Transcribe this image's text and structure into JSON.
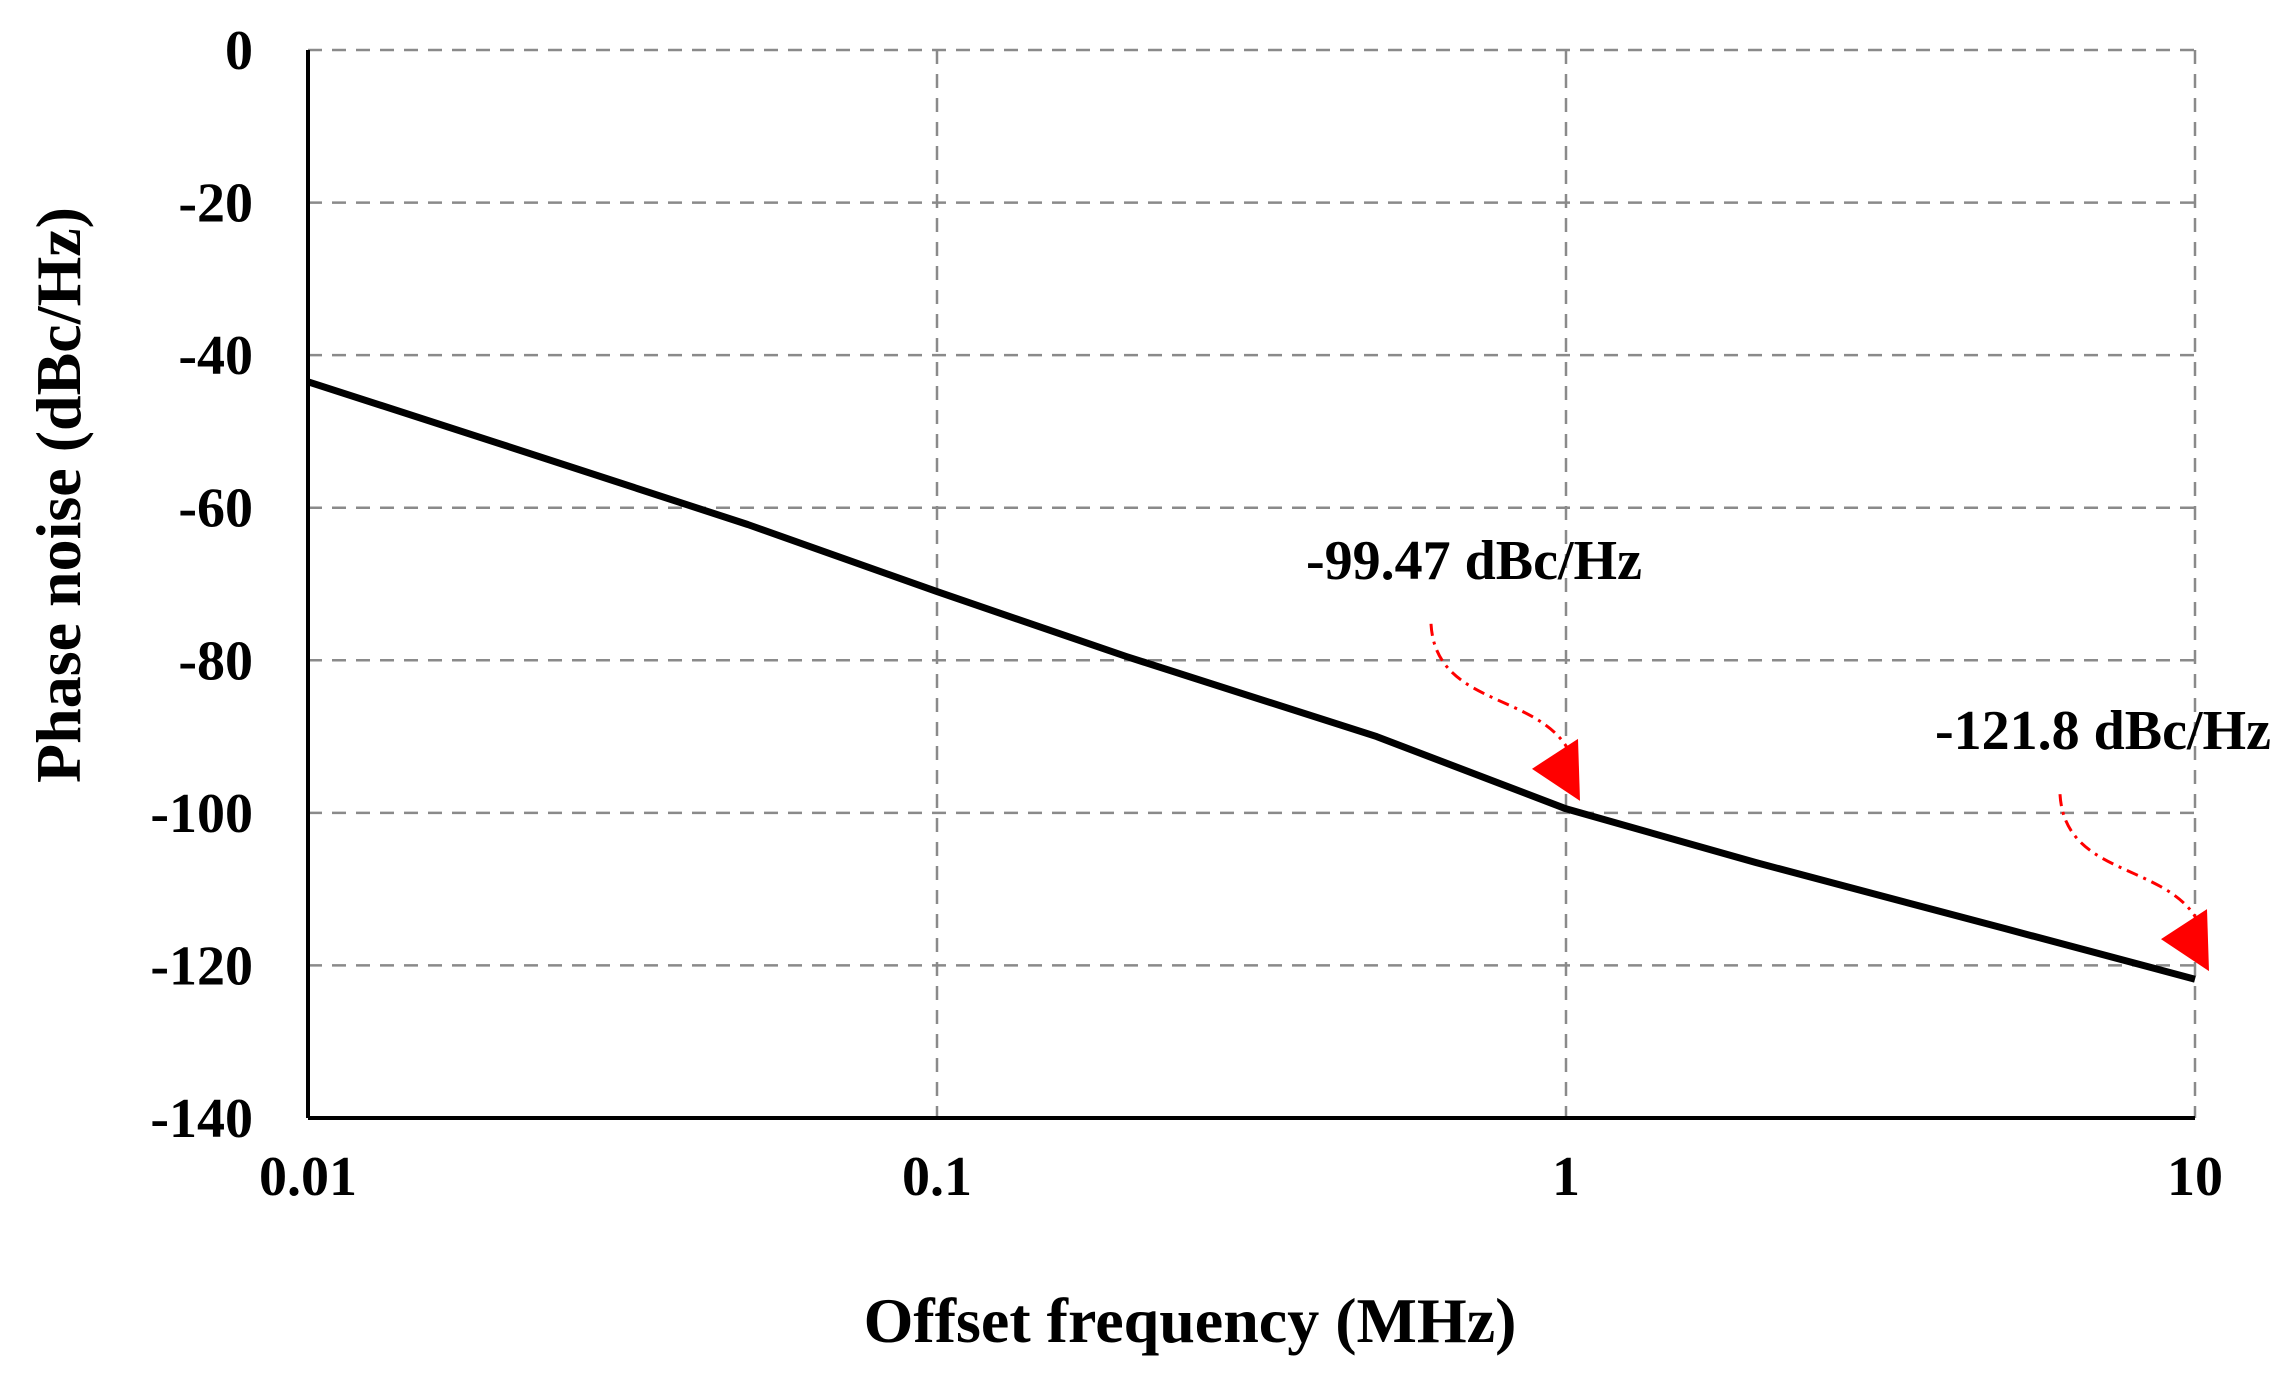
{
  "chart_data": {
    "type": "line",
    "title": "",
    "xlabel": "Offset frequency (MHz)",
    "ylabel": "Phase noise (dBc/Hz)",
    "xscale": "log",
    "xlim": [
      0.01,
      10
    ],
    "ylim": [
      -140,
      0
    ],
    "x_ticks": [
      0.01,
      0.1,
      1,
      10
    ],
    "x_tick_labels": [
      "0.01",
      "0.1",
      "1",
      "10"
    ],
    "y_ticks": [
      0,
      -20,
      -40,
      -60,
      -80,
      -100,
      -120,
      -140
    ],
    "y_tick_labels": [
      "0",
      "-20",
      "-40",
      "-60",
      "-80",
      "-100",
      "-120",
      "-140"
    ],
    "grid": true,
    "legend": "none",
    "series": [
      {
        "color": "#000000",
        "x": [
          0.01,
          0.02,
          0.05,
          0.1,
          0.2,
          0.5,
          1,
          2,
          5,
          10
        ],
        "y": [
          -43.5,
          -51.5,
          -62.2,
          -71.0,
          -79.5,
          -90.0,
          -99.47,
          -106.5,
          -115.2,
          -121.8
        ]
      }
    ],
    "annotations": [
      {
        "text": "-99.47 dBc/Hz",
        "x": 1,
        "y": -99.47,
        "arrow_color": "#ff0000"
      },
      {
        "text": "-121.8 dBc/Hz",
        "x": 10,
        "y": -121.8,
        "arrow_color": "#ff0000"
      }
    ]
  }
}
